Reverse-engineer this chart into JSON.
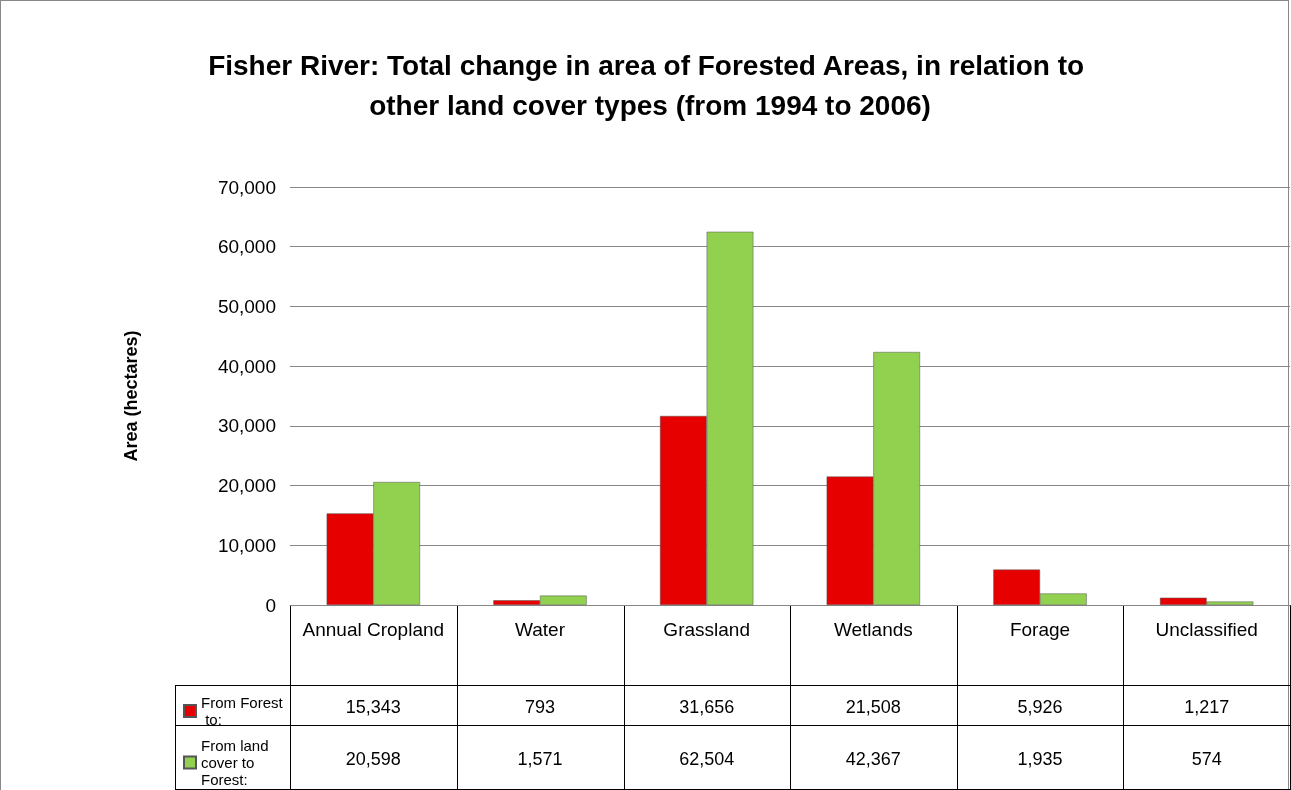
{
  "chart_data": {
    "type": "bar",
    "title": "Fisher River: Total change in area of Forested Areas, in relation to other land cover types (from 1994 to 2006)",
    "ylabel": "Area (hectares)",
    "categories": [
      "Annual Cropland",
      "Water",
      "Grassland",
      "Wetlands",
      "Forage",
      "Unclassified"
    ],
    "series": [
      {
        "name": "From Forest to:",
        "color": "#e60000",
        "values": [
          15343,
          793,
          31656,
          21508,
          5926,
          1217
        ],
        "value_labels": [
          "15,343",
          "793",
          "31,656",
          "21,508",
          "5,926",
          "1,217"
        ]
      },
      {
        "name": "From land cover to Forest:",
        "color": "#92d050",
        "values": [
          20598,
          1571,
          62504,
          42367,
          1935,
          574
        ],
        "value_labels": [
          "20,598",
          "1,571",
          "62,504",
          "42,367",
          "1,935",
          "574"
        ]
      }
    ],
    "ylim": [
      0,
      70000
    ],
    "yticks": [
      0,
      {
        "value": 10000,
        "label": "10,000"
      },
      {
        "value": 20000,
        "label": "20,000"
      },
      {
        "value": 30000,
        "label": "30,000"
      },
      {
        "value": 40000,
        "label": "40,000"
      },
      {
        "value": 50000,
        "label": "50,000"
      },
      {
        "value": 60000,
        "label": "60,000"
      },
      {
        "value": 70000,
        "label": "70,000"
      }
    ],
    "grid": "y",
    "legend": "bottom left"
  }
}
